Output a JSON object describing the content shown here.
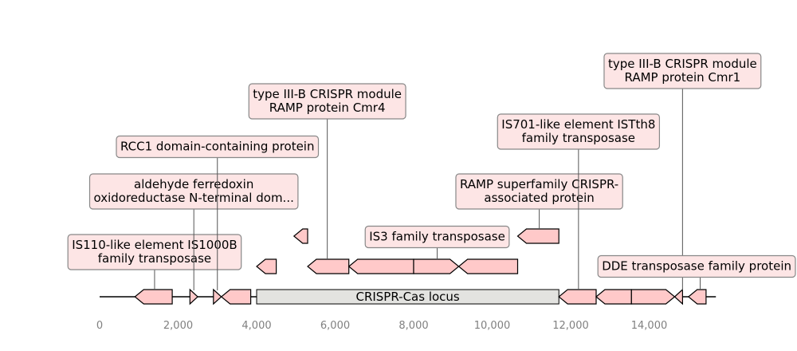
{
  "diagram": {
    "axis": {
      "min": 0,
      "max": 15700,
      "ticks": [
        {
          "value": 0,
          "label": "0"
        },
        {
          "value": 2000,
          "label": "2,000"
        },
        {
          "value": 4000,
          "label": "4,000"
        },
        {
          "value": 6000,
          "label": "6,000"
        },
        {
          "value": 8000,
          "label": "8,000"
        },
        {
          "value": 10000,
          "label": "10,000"
        },
        {
          "value": 12000,
          "label": "12,000"
        },
        {
          "value": 14000,
          "label": "14,000"
        }
      ]
    },
    "colors": {
      "gene": "#ffc9c9",
      "locus_box": "#e3e3e0",
      "label_box": "#fde5e5",
      "outline": "#000000"
    },
    "locus_box": {
      "start": 4000,
      "end": 11700,
      "label": "CRISPR-Cas locus"
    },
    "genes": [
      {
        "start": 900,
        "end": 1850,
        "strand": -1,
        "row": 0
      },
      {
        "start": 2300,
        "end": 2500,
        "strand": 1,
        "row": 0
      },
      {
        "start": 2900,
        "end": 3100,
        "strand": 1,
        "row": 0
      },
      {
        "start": 3100,
        "end": 3850,
        "strand": -1,
        "row": 0
      },
      {
        "start": 11700,
        "end": 12650,
        "strand": -1,
        "row": 0
      },
      {
        "start": 12650,
        "end": 13550,
        "strand": -1,
        "row": 0
      },
      {
        "start": 13550,
        "end": 14650,
        "strand": 1,
        "row": 0
      },
      {
        "start": 14650,
        "end": 14850,
        "strand": -1,
        "row": 0
      },
      {
        "start": 15000,
        "end": 15450,
        "strand": -1,
        "row": 0
      },
      {
        "start": 4000,
        "end": 4500,
        "strand": -1,
        "row": 1
      },
      {
        "start": 5300,
        "end": 6350,
        "strand": -1,
        "row": 1
      },
      {
        "start": 6350,
        "end": 8000,
        "strand": -1,
        "row": 1
      },
      {
        "start": 8000,
        "end": 9150,
        "strand": 1,
        "row": 1
      },
      {
        "start": 9150,
        "end": 10650,
        "strand": -1,
        "row": 1
      },
      {
        "start": 4950,
        "end": 5300,
        "strand": -1,
        "row": 2
      },
      {
        "start": 10650,
        "end": 11700,
        "strand": -1,
        "row": 2
      }
    ],
    "labels": [
      {
        "lines": [
          "IS110-like element IS1000B",
          "family transposase"
        ],
        "x": 1400,
        "anchor_y": 364
      },
      {
        "lines": [
          "aldehyde ferredoxin",
          "oxidoreductase N-terminal dom..."
        ],
        "x": 2400,
        "anchor_y": 364
      },
      {
        "lines": [
          "RCC1 domain-containing protein"
        ],
        "x": 3000,
        "anchor_y": 364
      },
      {
        "lines": [
          "type III-B CRISPR module",
          "RAMP protein Cmr4"
        ],
        "x": 5800,
        "anchor_y": 326
      },
      {
        "lines": [
          "IS3 family transposase"
        ],
        "x": 8600,
        "anchor_y": 326
      },
      {
        "lines": [
          "RAMP superfamily CRISPR-",
          "associated protein"
        ],
        "x": 11200,
        "anchor_y": 288
      },
      {
        "lines": [
          "IS701-like element ISTth8",
          "family transposase"
        ],
        "x": 12200,
        "anchor_y": 364
      },
      {
        "lines": [
          "type III-B CRISPR module",
          "RAMP protein Cmr1"
        ],
        "x": 14850,
        "anchor_y": 364
      },
      {
        "lines": [
          "DDE transposase family protein"
        ],
        "x": 15300,
        "anchor_y": 364
      }
    ]
  }
}
